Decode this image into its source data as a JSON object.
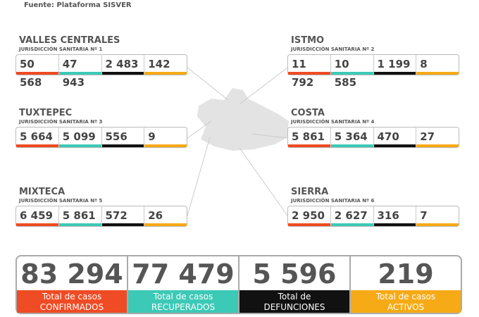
{
  "header": {
    "source": "Fuente: Plataforma SISVER"
  },
  "regions": [
    {
      "name": "VALLES CENTRALES",
      "jurisdiction": "JURISDICCIÓN SANITARIA Nº 1",
      "values": [
        "50 568",
        "47 943",
        "2 483",
        "142"
      ]
    },
    {
      "name": "ISTMO",
      "jurisdiction": "JURISDICCIÓN SANITARIA Nº 2",
      "values": [
        "11 792",
        "10 585",
        "1 199",
        "8"
      ]
    },
    {
      "name": "TUXTEPEC",
      "jurisdiction": "JURISDICCIÓN SANITARIA Nº 3",
      "values": [
        "5 664",
        "5 099",
        "556",
        "9"
      ]
    },
    {
      "name": "COSTA",
      "jurisdiction": "JURISDICCIÓN SANITARIA Nº 4",
      "values": [
        "5 861",
        "5 364",
        "470",
        "27"
      ]
    },
    {
      "name": "MIXTECA",
      "jurisdiction": "JURISDICCIÓN SANITARIA Nº 5",
      "values": [
        "6 459",
        "5 861",
        "572",
        "26"
      ]
    },
    {
      "name": "SIERRA",
      "jurisdiction": "JURISDICCIÓN SANITARIA Nº 6",
      "values": [
        "2 950",
        "2 627",
        "316",
        "7"
      ]
    }
  ],
  "totals": [
    {
      "value": "83 294",
      "label_top": "Total de casos",
      "label_bottom": "CONFIRMADOS"
    },
    {
      "value": "77 479",
      "label_top": "Total de casos",
      "label_bottom": "RECUPERADOS"
    },
    {
      "value": "5 596",
      "label_top": "Total de",
      "label_bottom": "DEFUNCIONES"
    },
    {
      "value": "219",
      "label_top": "Total de casos",
      "label_bottom": "ACTIVOS"
    }
  ]
}
